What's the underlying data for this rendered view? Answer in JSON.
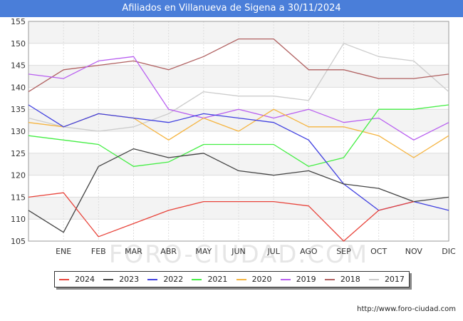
{
  "header": {
    "title": "Afiliados en Villanueva de Sigena a 30/11/2024"
  },
  "footer": {
    "url": "http://www.foro-ciudad.com"
  },
  "watermark": "FORO-CIUDAD.COM",
  "chart_data": {
    "type": "line",
    "title": "Afiliados en Villanueva de Sigena a 30/11/2024",
    "xlabel": "",
    "ylabel": "",
    "ylim": [
      105,
      155
    ],
    "yticks": [
      105,
      110,
      115,
      120,
      125,
      130,
      135,
      140,
      145,
      150,
      155
    ],
    "grid": true,
    "legend_position": "bottom",
    "categories": [
      "",
      "ENE",
      "FEB",
      "MAR",
      "ABR",
      "MAY",
      "JUN",
      "JUL",
      "AGO",
      "SEP",
      "OCT",
      "NOV",
      "DIC"
    ],
    "series": [
      {
        "name": "2024",
        "color": "#e8453c",
        "values": [
          115,
          116,
          106,
          109,
          112,
          114,
          114,
          114,
          113,
          105,
          112,
          114,
          null
        ]
      },
      {
        "name": "2023",
        "color": "#444444",
        "values": [
          112,
          107,
          122,
          126,
          124,
          125,
          121,
          120,
          121,
          118,
          117,
          114,
          115
        ]
      },
      {
        "name": "2022",
        "color": "#4040e0",
        "values": [
          136,
          131,
          134,
          133,
          132,
          134,
          133,
          132,
          128,
          118,
          112,
          114,
          112
        ]
      },
      {
        "name": "2021",
        "color": "#44ee44",
        "values": [
          129,
          128,
          127,
          122,
          123,
          127,
          127,
          127,
          122,
          124,
          135,
          135,
          136
        ]
      },
      {
        "name": "2020",
        "color": "#f5b440",
        "values": [
          132,
          131,
          134,
          133,
          128,
          133,
          130,
          135,
          131,
          131,
          129,
          124,
          129
        ]
      },
      {
        "name": "2019",
        "color": "#b85ef0",
        "values": [
          143,
          142,
          146,
          147,
          135,
          133,
          135,
          133,
          135,
          132,
          133,
          128,
          132
        ]
      },
      {
        "name": "2018",
        "color": "#b06060",
        "values": [
          139,
          144,
          145,
          146,
          144,
          147,
          151,
          151,
          144,
          144,
          142,
          142,
          143
        ]
      },
      {
        "name": "2017",
        "color": "#cccccc",
        "values": [
          133,
          131,
          130,
          131,
          134,
          139,
          138,
          138,
          137,
          150,
          147,
          146,
          139
        ]
      }
    ]
  }
}
